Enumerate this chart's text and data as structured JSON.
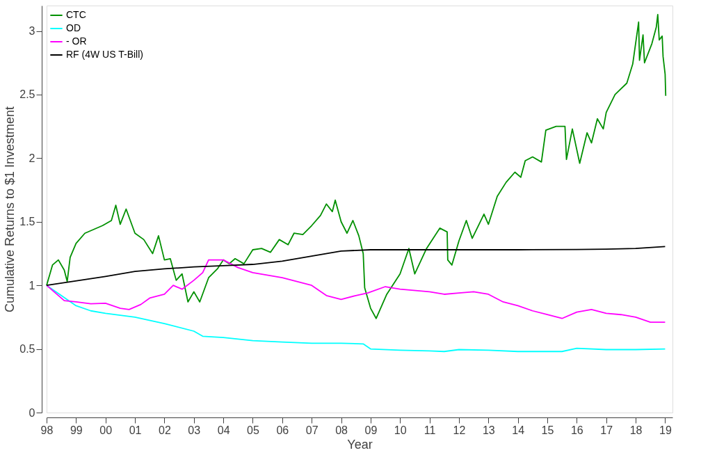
{
  "chart_data": {
    "type": "line",
    "xlabel": "Year",
    "ylabel": "Cumulative Returns to $1 Investment",
    "xlim": [
      1998,
      2019.25
    ],
    "ylim": [
      0,
      3.2
    ],
    "xticks": [
      {
        "value": 1998,
        "label": "98"
      },
      {
        "value": 1999,
        "label": "99"
      },
      {
        "value": 2000,
        "label": "00"
      },
      {
        "value": 2001,
        "label": "01"
      },
      {
        "value": 2002,
        "label": "02"
      },
      {
        "value": 2003,
        "label": "03"
      },
      {
        "value": 2004,
        "label": "04"
      },
      {
        "value": 2005,
        "label": "05"
      },
      {
        "value": 2006,
        "label": "06"
      },
      {
        "value": 2007,
        "label": "07"
      },
      {
        "value": 2008,
        "label": "08"
      },
      {
        "value": 2009,
        "label": "09"
      },
      {
        "value": 2010,
        "label": "10"
      },
      {
        "value": 2011,
        "label": "11"
      },
      {
        "value": 2012,
        "label": "12"
      },
      {
        "value": 2013,
        "label": "13"
      },
      {
        "value": 2014,
        "label": "14"
      },
      {
        "value": 2015,
        "label": "15"
      },
      {
        "value": 2016,
        "label": "16"
      },
      {
        "value": 2017,
        "label": "17"
      },
      {
        "value": 2018,
        "label": "18"
      },
      {
        "value": 2019,
        "label": "19"
      }
    ],
    "yticks": [
      0,
      0.5,
      1,
      1.5,
      2,
      2.5,
      3
    ],
    "grid": false,
    "legend": "top left",
    "marker": "none",
    "line_style": "solid",
    "series": [
      {
        "name": "CTC",
        "color": "#009000",
        "x": [
          1998,
          1998.2,
          1998.4,
          1998.6,
          1998.7,
          1998.8,
          1999,
          1999.3,
          1999.6,
          1999.9,
          2000.2,
          2000.35,
          2000.5,
          2000.7,
          2001,
          2001.3,
          2001.6,
          2001.8,
          2002,
          2002.2,
          2002.4,
          2002.6,
          2002.8,
          2003,
          2003.2,
          2003.5,
          2003.8,
          2004,
          2004.2,
          2004.4,
          2004.7,
          2005,
          2005.3,
          2005.6,
          2005.9,
          2006.2,
          2006.4,
          2006.7,
          2007,
          2007.3,
          2007.5,
          2007.7,
          2007.8,
          2008,
          2008.2,
          2008.4,
          2008.6,
          2008.75,
          2008.8,
          2009,
          2009.19,
          2009.55,
          2010,
          2010.3,
          2010.5,
          2010.9,
          2011.35,
          2011.6,
          2011.62,
          2011.76,
          2012,
          2012.25,
          2012.45,
          2012.85,
          2013,
          2013.3,
          2013.6,
          2013.9,
          2014.1,
          2014.25,
          2014.5,
          2014.8,
          2014.95,
          2015.3,
          2015.6,
          2015.65,
          2015.85,
          2016.1,
          2016.35,
          2016.5,
          2016.7,
          2016.9,
          2017,
          2017.3,
          2017.7,
          2017.9,
          2018.1,
          2018.13,
          2018.25,
          2018.3,
          2018.55,
          2018.7,
          2018.75,
          2018.8,
          2018.9,
          2018.93,
          2019,
          2019.02
        ],
        "values": [
          1.0,
          1.16,
          1.2,
          1.12,
          1.03,
          1.22,
          1.33,
          1.41,
          1.44,
          1.47,
          1.51,
          1.63,
          1.48,
          1.6,
          1.41,
          1.36,
          1.25,
          1.39,
          1.2,
          1.21,
          1.04,
          1.09,
          0.87,
          0.95,
          0.87,
          1.06,
          1.13,
          1.2,
          1.17,
          1.21,
          1.17,
          1.28,
          1.29,
          1.26,
          1.36,
          1.32,
          1.41,
          1.4,
          1.47,
          1.55,
          1.64,
          1.58,
          1.67,
          1.5,
          1.41,
          1.51,
          1.39,
          1.25,
          0.98,
          0.82,
          0.74,
          0.93,
          1.09,
          1.29,
          1.09,
          1.29,
          1.45,
          1.42,
          1.2,
          1.16,
          1.35,
          1.51,
          1.37,
          1.56,
          1.48,
          1.7,
          1.81,
          1.89,
          1.85,
          1.98,
          2.01,
          1.97,
          2.22,
          2.25,
          2.25,
          1.99,
          2.23,
          1.96,
          2.2,
          2.12,
          2.31,
          2.23,
          2.36,
          2.5,
          2.59,
          2.74,
          3.07,
          2.77,
          2.97,
          2.75,
          2.9,
          3.03,
          3.13,
          2.93,
          2.96,
          2.8,
          2.66,
          2.49
        ]
      },
      {
        "name": "OD",
        "color": "#00ffff",
        "x": [
          1998,
          1998.5,
          1999,
          1999.5,
          2000,
          2001,
          2002,
          2003,
          2003.3,
          2004,
          2005,
          2006,
          2007,
          2008,
          2008.75,
          2009,
          2010,
          2011,
          2011.5,
          2012,
          2013,
          2014,
          2015,
          2015.5,
          2016,
          2017,
          2018,
          2019
        ],
        "values": [
          1.0,
          0.92,
          0.84,
          0.8,
          0.78,
          0.75,
          0.7,
          0.64,
          0.6,
          0.59,
          0.565,
          0.555,
          0.545,
          0.545,
          0.54,
          0.5,
          0.49,
          0.485,
          0.48,
          0.495,
          0.49,
          0.48,
          0.48,
          0.48,
          0.505,
          0.495,
          0.495,
          0.5
        ]
      },
      {
        "name": "- OR",
        "color": "#ff00ff",
        "x": [
          1998,
          1998.3,
          1998.6,
          1999,
          1999.5,
          2000,
          2000.5,
          2000.8,
          2001.2,
          2001.5,
          2002,
          2002.3,
          2002.6,
          2003,
          2003.3,
          2003.5,
          2004,
          2004.5,
          2005,
          2006,
          2007,
          2007.5,
          2008,
          2008.5,
          2008.9,
          2009.5,
          2010,
          2011,
          2011.5,
          2012,
          2012.5,
          2013,
          2013.5,
          2014,
          2014.5,
          2015,
          2015.5,
          2016,
          2016.5,
          2017,
          2017.5,
          2018,
          2018.5,
          2019
        ],
        "values": [
          1.0,
          0.94,
          0.88,
          0.87,
          0.855,
          0.86,
          0.82,
          0.81,
          0.85,
          0.9,
          0.93,
          1.0,
          0.97,
          1.04,
          1.1,
          1.2,
          1.2,
          1.14,
          1.1,
          1.06,
          1.0,
          0.92,
          0.89,
          0.92,
          0.94,
          0.99,
          0.97,
          0.95,
          0.93,
          0.94,
          0.95,
          0.93,
          0.87,
          0.84,
          0.8,
          0.77,
          0.74,
          0.79,
          0.81,
          0.78,
          0.77,
          0.75,
          0.71,
          0.71
        ]
      },
      {
        "name": "RF (4W US T-Bill)",
        "color": "#000000",
        "x": [
          1998,
          2000,
          2001,
          2002,
          2003,
          2004,
          2005,
          2006,
          2007,
          2008,
          2009,
          2010,
          2012,
          2014,
          2016,
          2017,
          2018,
          2019
        ],
        "values": [
          1.0,
          1.07,
          1.11,
          1.13,
          1.145,
          1.155,
          1.165,
          1.19,
          1.23,
          1.27,
          1.28,
          1.28,
          1.28,
          1.28,
          1.282,
          1.285,
          1.29,
          1.305
        ]
      }
    ]
  }
}
